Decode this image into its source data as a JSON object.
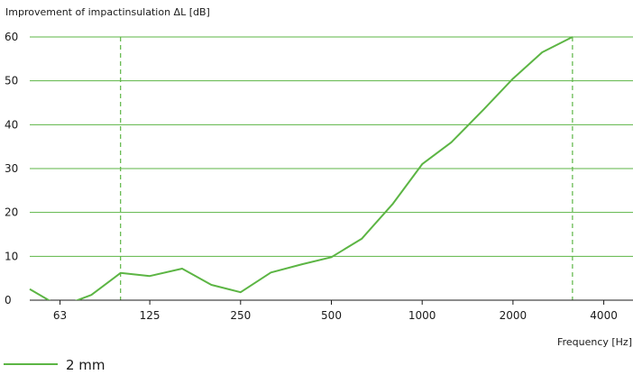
{
  "chart_data": {
    "type": "line",
    "title": "",
    "ylabel": "Improvement of impactinsulation ΔL [dB]",
    "xlabel": "Frequency [Hz]",
    "x_scale": "log",
    "x_ticks": [
      63,
      125,
      250,
      500,
      1000,
      2000,
      4000
    ],
    "x_tick_labels": [
      "63",
      "125",
      "250",
      "500",
      "1000",
      "2000",
      "4000"
    ],
    "xlim": [
      50,
      5000
    ],
    "y_ticks": [
      0,
      10,
      20,
      30,
      40,
      50,
      60
    ],
    "y_tick_labels": [
      "0",
      "10",
      "20",
      "30",
      "40",
      "50",
      "60"
    ],
    "ylim": [
      0,
      60
    ],
    "grid": "horizontal",
    "reference_lines_x": [
      100,
      3150
    ],
    "series_color": "#5cb544",
    "grid_color": "#5cb544",
    "series": [
      {
        "name": "2 mm",
        "x": [
          50,
          63,
          80,
          100,
          125,
          160,
          200,
          250,
          315,
          400,
          500,
          630,
          800,
          1000,
          1250,
          1600,
          2000,
          2500,
          3150
        ],
        "y": [
          2.5,
          -1.5,
          1.2,
          6.2,
          5.5,
          7.2,
          3.5,
          1.8,
          6.3,
          8.2,
          9.8,
          14,
          22,
          31,
          36,
          43.5,
          50.5,
          56.5,
          60
        ]
      }
    ],
    "legend_position": "bottom-left"
  }
}
